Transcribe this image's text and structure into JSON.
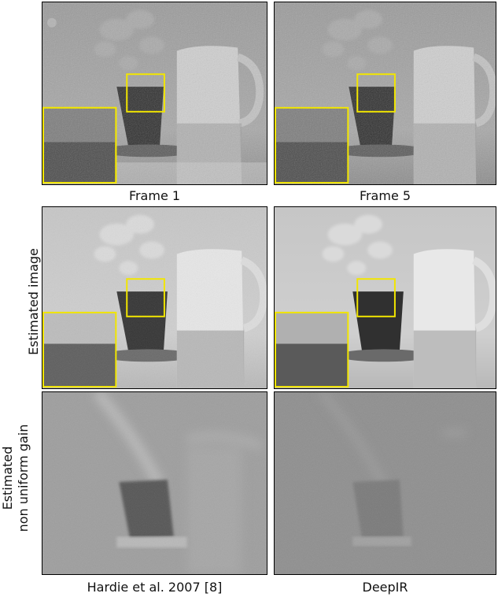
{
  "captions": {
    "frame1": "Frame 1",
    "frame5": "Frame 5",
    "hardie": "Hardie et al. 2007 [8]",
    "deepir": "DeepIR"
  },
  "row_labels": {
    "estimated_image": "Estimated image",
    "gain_line1": "Estimated",
    "gain_line2": "non uniform gain"
  },
  "colors": {
    "highlight_box": "#f2e600",
    "border": "#000000"
  }
}
